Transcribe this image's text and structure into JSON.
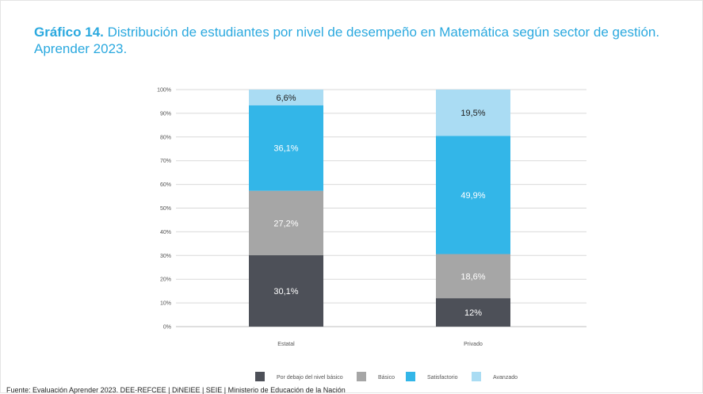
{
  "title": {
    "number": "Gráfico 14.",
    "text": "Distribución de estudiantes por nivel de desempeño en Matemática según sector de gestión. Aprender 2023."
  },
  "source": "Fuente: Evaluación Aprender 2023. DEE-REFCEE | DiNEIEE | SEIE | Ministerio de Educación de la Nación",
  "chart_data": {
    "type": "bar",
    "stacked": true,
    "categories": [
      "Estatal",
      "Privado"
    ],
    "series": [
      {
        "name": "Por debajo del nivel básico",
        "values": [
          30.1,
          12.0
        ],
        "labels": [
          "30,1%",
          "12%"
        ],
        "color": "#4d5058",
        "label_color": "#ffffff"
      },
      {
        "name": "Básico",
        "values": [
          27.2,
          18.6
        ],
        "labels": [
          "27,2%",
          "18,6%"
        ],
        "color": "#a6a6a6",
        "label_color": "#ffffff"
      },
      {
        "name": "Satisfactorio",
        "values": [
          36.1,
          49.9
        ],
        "labels": [
          "36,1%",
          "49,9%"
        ],
        "color": "#33b6e8",
        "label_color": "#ffffff"
      },
      {
        "name": "Avanzado",
        "values": [
          6.6,
          19.5
        ],
        "labels": [
          "6,6%",
          "19,5%"
        ],
        "color": "#aadcf3",
        "label_color": "#222222"
      }
    ],
    "yticks": [
      "0%",
      "10%",
      "20%",
      "30%",
      "40%",
      "50%",
      "60%",
      "70%",
      "80%",
      "90%",
      "100%"
    ],
    "ylim": [
      0,
      100
    ],
    "grid": true,
    "legend": "bottom"
  }
}
